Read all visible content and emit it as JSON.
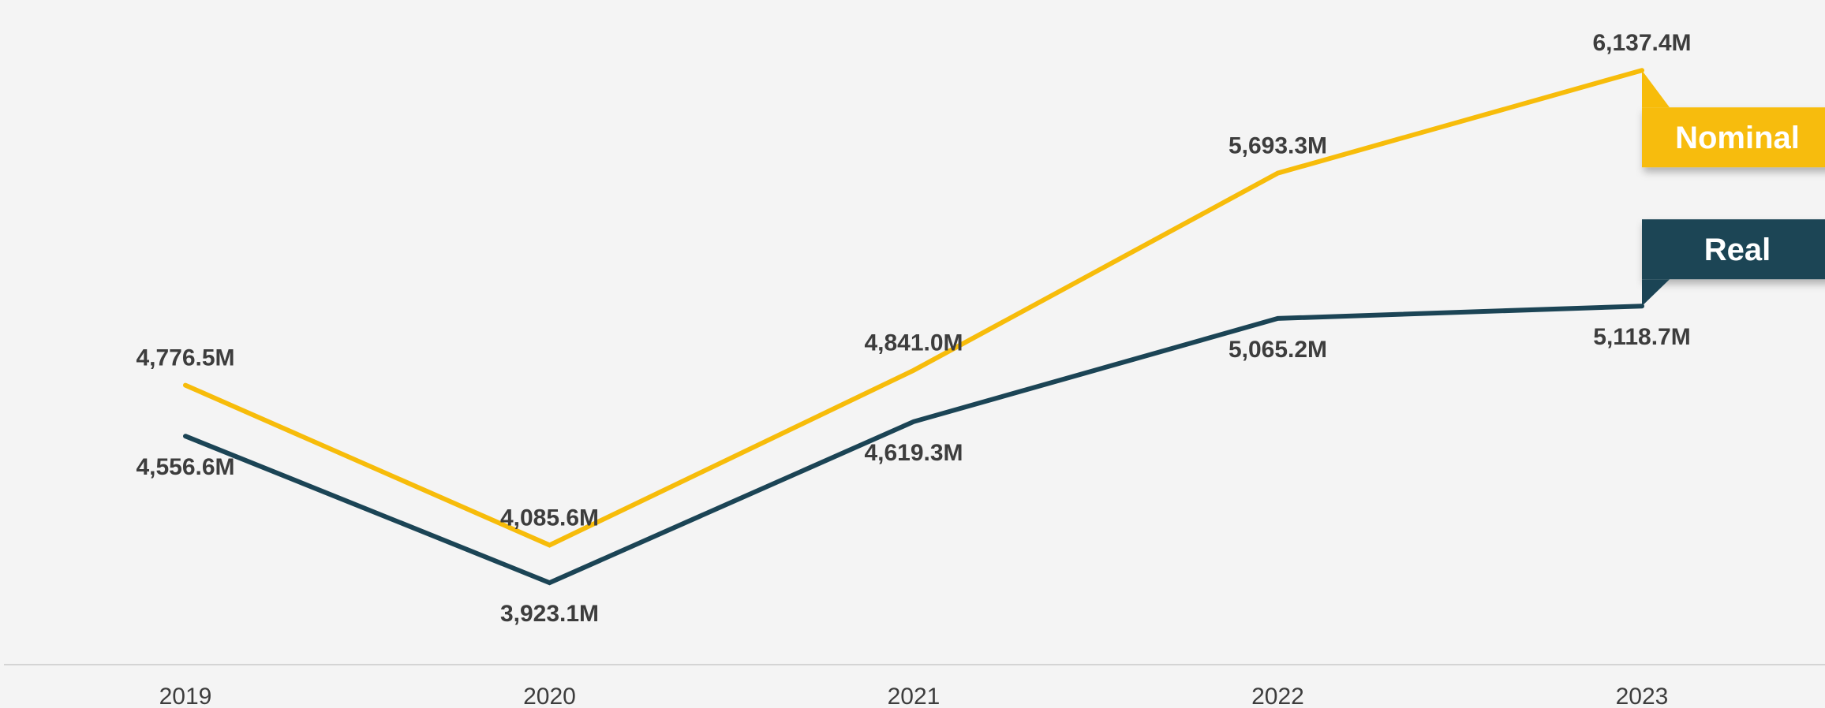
{
  "chart_data": {
    "type": "line",
    "title": "",
    "xlabel": "",
    "ylabel": "",
    "categories": [
      "2019",
      "2020",
      "2021",
      "2022",
      "2023"
    ],
    "ylim": [
      3000,
      6300
    ],
    "grid": false,
    "legend": "end-of-line flags",
    "series": [
      {
        "name": "Nominal",
        "color": "#f7bc0a",
        "values": [
          4776.5,
          4085.6,
          4841.0,
          5693.3,
          6137.4
        ],
        "labels": [
          "4,776.5M",
          "4,085.6M",
          "4,841.0M",
          "5,693.3M",
          "6,137.4M"
        ],
        "label_position": "above"
      },
      {
        "name": "Real",
        "color": "#1b4455",
        "values": [
          4556.6,
          3923.1,
          4619.3,
          5065.2,
          5118.7
        ],
        "labels": [
          "4,556.6M",
          "3,923.1M",
          "4,619.3M",
          "5,065.2M",
          "5,118.7M"
        ],
        "label_position": "below"
      }
    ]
  }
}
